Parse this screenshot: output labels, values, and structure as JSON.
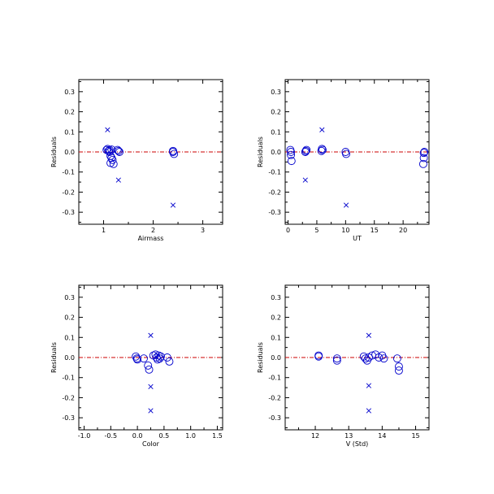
{
  "colors": {
    "points": "#0000cc",
    "zero_line": "#cc0000",
    "axes": "#000000"
  },
  "chart_data": [
    {
      "type": "scatter",
      "xlabel": "Airmass",
      "ylabel": "Residuals",
      "xlim": [
        0.5,
        3.4
      ],
      "ylim": [
        -0.36,
        0.36
      ],
      "xticks": [
        1,
        2,
        3
      ],
      "yticks": [
        -0.3,
        -0.2,
        -0.1,
        0.0,
        0.1,
        0.2,
        0.3
      ],
      "ytick_labels": [
        "-0.3",
        "-0.2",
        "-0.1",
        "0.0",
        "0.1",
        "0.2",
        "0.3"
      ],
      "zero_line": 0,
      "series": [
        {
          "marker": "circle",
          "x": [
            1.06,
            1.08,
            1.1,
            1.12,
            1.14,
            1.16,
            1.18,
            1.2,
            1.28,
            1.3,
            1.32,
            1.14,
            1.16,
            1.12,
            2.4,
            2.42,
            2.4
          ],
          "y": [
            0.01,
            0.015,
            0.005,
            0.0,
            -0.02,
            -0.03,
            -0.04,
            -0.06,
            0.01,
            0.005,
            0.0,
            -0.055,
            0.012,
            0.01,
            0.0,
            -0.01,
            0.005
          ]
        },
        {
          "marker": "x",
          "x": [
            1.08,
            1.3,
            2.4
          ],
          "y": [
            0.11,
            -0.14,
            -0.265
          ]
        }
      ]
    },
    {
      "type": "scatter",
      "xlabel": "UT",
      "ylabel": "Residuals",
      "xlim": [
        -0.5,
        24.5
      ],
      "ylim": [
        -0.36,
        0.36
      ],
      "xticks": [
        0,
        5,
        10,
        15,
        20
      ],
      "yticks": [
        -0.3,
        -0.2,
        -0.1,
        0.0,
        0.1,
        0.2,
        0.3
      ],
      "ytick_labels": [
        "-0.3",
        "-0.2",
        "-0.1",
        "0.0",
        "0.1",
        "0.2",
        "0.3"
      ],
      "zero_line": 0,
      "series": [
        {
          "marker": "circle",
          "x": [
            0.4,
            0.5,
            0.6,
            0.5,
            3.1,
            3.2,
            3.0,
            5.8,
            5.9,
            6.0,
            10.0,
            10.1,
            23.6,
            23.7,
            23.6,
            23.5
          ],
          "y": [
            0.01,
            -0.015,
            -0.045,
            0.0,
            0.005,
            0.01,
            0.0,
            0.005,
            0.015,
            0.01,
            0.0,
            -0.01,
            -0.005,
            0.0,
            -0.03,
            -0.06
          ]
        },
        {
          "marker": "x",
          "x": [
            3.0,
            5.9,
            10.1
          ],
          "y": [
            -0.14,
            0.11,
            -0.265
          ]
        }
      ]
    },
    {
      "type": "scatter",
      "xlabel": "Color",
      "ylabel": "Residuals",
      "xlim": [
        -1.1,
        1.6
      ],
      "ylim": [
        -0.36,
        0.36
      ],
      "xticks": [
        -1.0,
        -0.5,
        0.0,
        0.5,
        1.0,
        1.5
      ],
      "xtick_labels": [
        "-1.0",
        "-0.5",
        "0.0",
        "0.5",
        "1.0",
        "1.5"
      ],
      "yticks": [
        -0.3,
        -0.2,
        -0.1,
        0.0,
        0.1,
        0.2,
        0.3
      ],
      "ytick_labels": [
        "-0.3",
        "-0.2",
        "-0.1",
        "0.0",
        "0.1",
        "0.2",
        "0.3"
      ],
      "zero_line": 0,
      "series": [
        {
          "marker": "circle",
          "x": [
            -0.03,
            -0.01,
            0.0,
            0.12,
            0.2,
            0.22,
            0.3,
            0.34,
            0.36,
            0.38,
            0.4,
            0.42,
            0.44,
            0.56,
            0.6
          ],
          "y": [
            0.005,
            -0.005,
            -0.01,
            -0.005,
            -0.04,
            -0.06,
            0.01,
            0.015,
            0.0,
            -0.01,
            0.01,
            -0.005,
            0.005,
            0.0,
            -0.02
          ]
        },
        {
          "marker": "x",
          "x": [
            0.25,
            0.25,
            0.25
          ],
          "y": [
            0.11,
            -0.145,
            -0.265
          ]
        }
      ]
    },
    {
      "type": "scatter",
      "xlabel": "V (Std)",
      "ylabel": "Residuals",
      "xlim": [
        11.1,
        15.4
      ],
      "ylim": [
        -0.36,
        0.36
      ],
      "xticks": [
        12,
        13,
        14,
        15
      ],
      "yticks": [
        -0.3,
        -0.2,
        -0.1,
        0.0,
        0.1,
        0.2,
        0.3
      ],
      "ytick_labels": [
        "-0.3",
        "-0.2",
        "-0.1",
        "0.0",
        "0.1",
        "0.2",
        "0.3"
      ],
      "zero_line": 0,
      "series": [
        {
          "marker": "circle",
          "x": [
            12.1,
            12.1,
            12.65,
            12.65,
            13.45,
            13.5,
            13.55,
            13.6,
            13.7,
            13.8,
            13.9,
            14.0,
            14.05,
            14.45,
            14.5,
            14.5
          ],
          "y": [
            0.01,
            0.005,
            -0.005,
            -0.015,
            0.005,
            -0.005,
            -0.015,
            0.0,
            0.01,
            0.015,
            0.0,
            0.01,
            -0.005,
            -0.005,
            -0.045,
            -0.065
          ]
        },
        {
          "marker": "x",
          "x": [
            13.6,
            13.6,
            13.6
          ],
          "y": [
            0.11,
            -0.14,
            -0.265
          ]
        }
      ]
    }
  ]
}
